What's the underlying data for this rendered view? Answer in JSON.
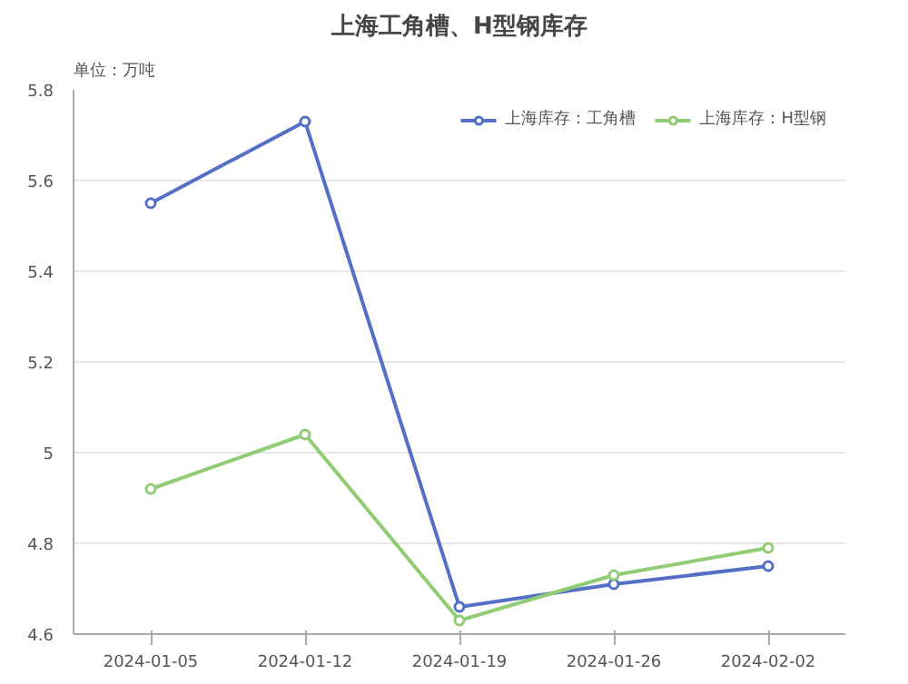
{
  "chart_data": {
    "type": "line",
    "title": "上海工角槽、H型钢库存",
    "ylabel": "单位：万吨",
    "categories": [
      "2024-01-05",
      "2024-01-12",
      "2024-01-19",
      "2024-01-26",
      "2024-02-02"
    ],
    "series": [
      {
        "name": "上海库存：工角槽",
        "color": "#5470c6",
        "values": [
          5.55,
          5.73,
          4.66,
          4.71,
          4.75
        ]
      },
      {
        "name": "上海库存：H型钢",
        "color": "#91cc75",
        "values": [
          4.92,
          5.04,
          4.63,
          4.73,
          4.79
        ]
      }
    ],
    "ylim": [
      4.6,
      5.8
    ],
    "yticks": [
      4.6,
      4.8,
      5,
      5.2,
      5.4,
      5.6,
      5.8
    ],
    "grid": "y",
    "legend": "top right",
    "marker": "circle",
    "line_style": "solid"
  }
}
